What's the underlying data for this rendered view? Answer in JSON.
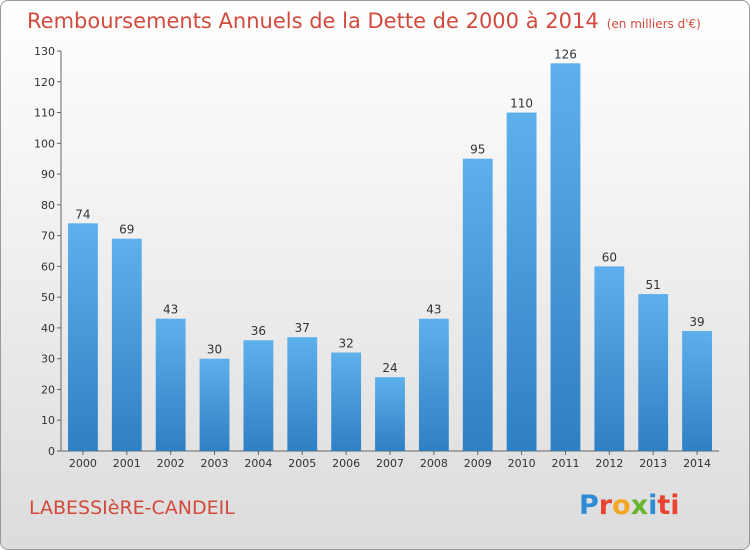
{
  "header": {
    "title": "Remboursements Annuels de la Dette de 2000 à 2014",
    "unit": "(en milliers d'€)"
  },
  "footer": {
    "commune": "LABESSIèRE-CANDEIL",
    "logo_letters": [
      "P",
      "r",
      "o",
      "x",
      "i",
      "ti"
    ]
  },
  "colors": {
    "bar": "#3d8fd6",
    "bar_light": "#5eb0ec",
    "title": "#d24a3c"
  },
  "chart_data": {
    "type": "bar",
    "title": "Remboursements Annuels de la Dette de 2000 à 2014",
    "categories": [
      "2000",
      "2001",
      "2002",
      "2003",
      "2004",
      "2005",
      "2006",
      "2007",
      "2008",
      "2009",
      "2010",
      "2011",
      "2012",
      "2013",
      "2014"
    ],
    "values": [
      74,
      69,
      43,
      30,
      36,
      37,
      32,
      24,
      43,
      95,
      110,
      126,
      60,
      51,
      39
    ],
    "ylim": [
      0,
      130
    ],
    "yticks": [
      0,
      10,
      20,
      30,
      40,
      50,
      60,
      70,
      80,
      90,
      100,
      110,
      120,
      130
    ],
    "grid": false,
    "xlabel": "",
    "ylabel": ""
  }
}
